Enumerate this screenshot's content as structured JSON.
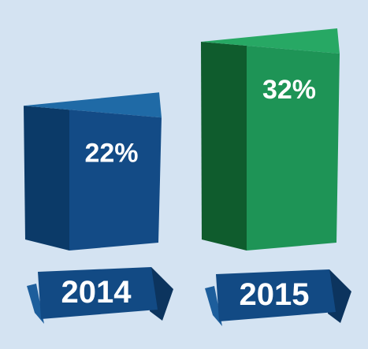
{
  "chart_data": {
    "type": "bar",
    "title": "",
    "xlabel": "",
    "ylabel": "",
    "categories": [
      "2014",
      "2015"
    ],
    "values": [
      22,
      32
    ],
    "value_labels": [
      "22%",
      "32%"
    ],
    "unit": "%",
    "ylim": [
      0,
      32
    ],
    "grid": false,
    "legend": "none",
    "bar_style": "3d-box",
    "colors": {
      "background": "#d4e3f2",
      "bars": [
        {
          "front": "#134b86",
          "side": "#0b3a68",
          "top": "#1f6aa6"
        },
        {
          "front": "#1e9456",
          "side": "#0f5c2d",
          "top": "#27a864"
        }
      ],
      "ribbon": "#124a84",
      "ribbon_fold": "#0c345e",
      "ribbon_wing": "#1d5e9c",
      "label_text": "#ffffff"
    }
  }
}
